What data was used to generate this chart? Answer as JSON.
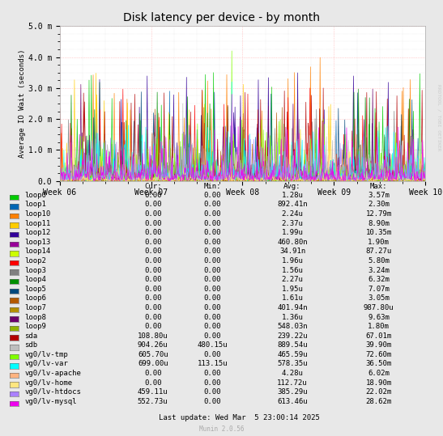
{
  "title": "Disk latency per device - by month",
  "ylabel": "Average IO Wait (seconds)",
  "xtick_labels": [
    "Week 06",
    "Week 07",
    "Week 08",
    "Week 09",
    "Week 10"
  ],
  "ytick_labels": [
    "0.0",
    "1.0 m",
    "2.0 m",
    "3.0 m",
    "4.0 m",
    "5.0 m"
  ],
  "ytick_values": [
    0.0,
    0.001,
    0.002,
    0.003,
    0.004,
    0.005
  ],
  "ylim": [
    0,
    0.005
  ],
  "background_color": "#e8e8e8",
  "plot_background": "#ffffff",
  "grid_color_major": "#ffaaaa",
  "grid_color_minor": "#dddddd",
  "title_fontsize": 11,
  "watermark": "RRDTOOL / TOBI OETIKER",
  "footer": "Munin 2.0.56",
  "last_update": "Last update: Wed Mar  5 23:00:14 2025",
  "legend_entries": [
    {
      "label": "loop0",
      "color": "#00cc00"
    },
    {
      "label": "loop1",
      "color": "#0066b3"
    },
    {
      "label": "loop10",
      "color": "#ff8000"
    },
    {
      "label": "loop11",
      "color": "#ffcc00"
    },
    {
      "label": "loop12",
      "color": "#330099"
    },
    {
      "label": "loop13",
      "color": "#990099"
    },
    {
      "label": "loop14",
      "color": "#ccff00"
    },
    {
      "label": "loop2",
      "color": "#ff0000"
    },
    {
      "label": "loop3",
      "color": "#808080"
    },
    {
      "label": "loop4",
      "color": "#008f00"
    },
    {
      "label": "loop5",
      "color": "#00487d"
    },
    {
      "label": "loop6",
      "color": "#b35a00"
    },
    {
      "label": "loop7",
      "color": "#b38f00"
    },
    {
      "label": "loop8",
      "color": "#6b006b"
    },
    {
      "label": "loop9",
      "color": "#8fb300"
    },
    {
      "label": "sda",
      "color": "#b30000"
    },
    {
      "label": "sdb",
      "color": "#bebebe"
    },
    {
      "label": "vg0/lv-tmp",
      "color": "#80ff00"
    },
    {
      "label": "vg0/lv-var",
      "color": "#00ffff"
    },
    {
      "label": "vg0/lv-apache",
      "color": "#ffb380"
    },
    {
      "label": "vg0/lv-home",
      "color": "#ffe680"
    },
    {
      "label": "vg0/lv-htdocs",
      "color": "#aa80ff"
    },
    {
      "label": "vg0/lv-mysql",
      "color": "#ee00ee"
    }
  ],
  "table_data": [
    [
      "loop0",
      "0.00",
      "0.00",
      "1.28u",
      "3.57m"
    ],
    [
      "loop1",
      "0.00",
      "0.00",
      "892.41n",
      "2.30m"
    ],
    [
      "loop10",
      "0.00",
      "0.00",
      "2.24u",
      "12.79m"
    ],
    [
      "loop11",
      "0.00",
      "0.00",
      "2.37u",
      "8.90m"
    ],
    [
      "loop12",
      "0.00",
      "0.00",
      "1.99u",
      "10.35m"
    ],
    [
      "loop13",
      "0.00",
      "0.00",
      "460.80n",
      "1.90m"
    ],
    [
      "loop14",
      "0.00",
      "0.00",
      "34.91n",
      "87.27u"
    ],
    [
      "loop2",
      "0.00",
      "0.00",
      "1.96u",
      "5.80m"
    ],
    [
      "loop3",
      "0.00",
      "0.00",
      "1.56u",
      "3.24m"
    ],
    [
      "loop4",
      "0.00",
      "0.00",
      "2.27u",
      "6.32m"
    ],
    [
      "loop5",
      "0.00",
      "0.00",
      "1.95u",
      "7.07m"
    ],
    [
      "loop6",
      "0.00",
      "0.00",
      "1.61u",
      "3.05m"
    ],
    [
      "loop7",
      "0.00",
      "0.00",
      "401.94n",
      "987.80u"
    ],
    [
      "loop8",
      "0.00",
      "0.00",
      "1.36u",
      "9.63m"
    ],
    [
      "loop9",
      "0.00",
      "0.00",
      "548.03n",
      "1.80m"
    ],
    [
      "sda",
      "108.80u",
      "0.00",
      "239.22u",
      "67.01m"
    ],
    [
      "sdb",
      "904.26u",
      "480.15u",
      "889.54u",
      "39.90m"
    ],
    [
      "vg0/lv-tmp",
      "605.70u",
      "0.00",
      "465.59u",
      "72.60m"
    ],
    [
      "vg0/lv-var",
      "699.00u",
      "113.15u",
      "578.35u",
      "36.50m"
    ],
    [
      "vg0/lv-apache",
      "0.00",
      "0.00",
      "4.28u",
      "6.02m"
    ],
    [
      "vg0/lv-home",
      "0.00",
      "0.00",
      "112.72u",
      "18.90m"
    ],
    [
      "vg0/lv-htdocs",
      "459.11u",
      "0.00",
      "385.29u",
      "22.02m"
    ],
    [
      "vg0/lv-mysql",
      "552.73u",
      "0.00",
      "613.46u",
      "28.62m"
    ]
  ]
}
